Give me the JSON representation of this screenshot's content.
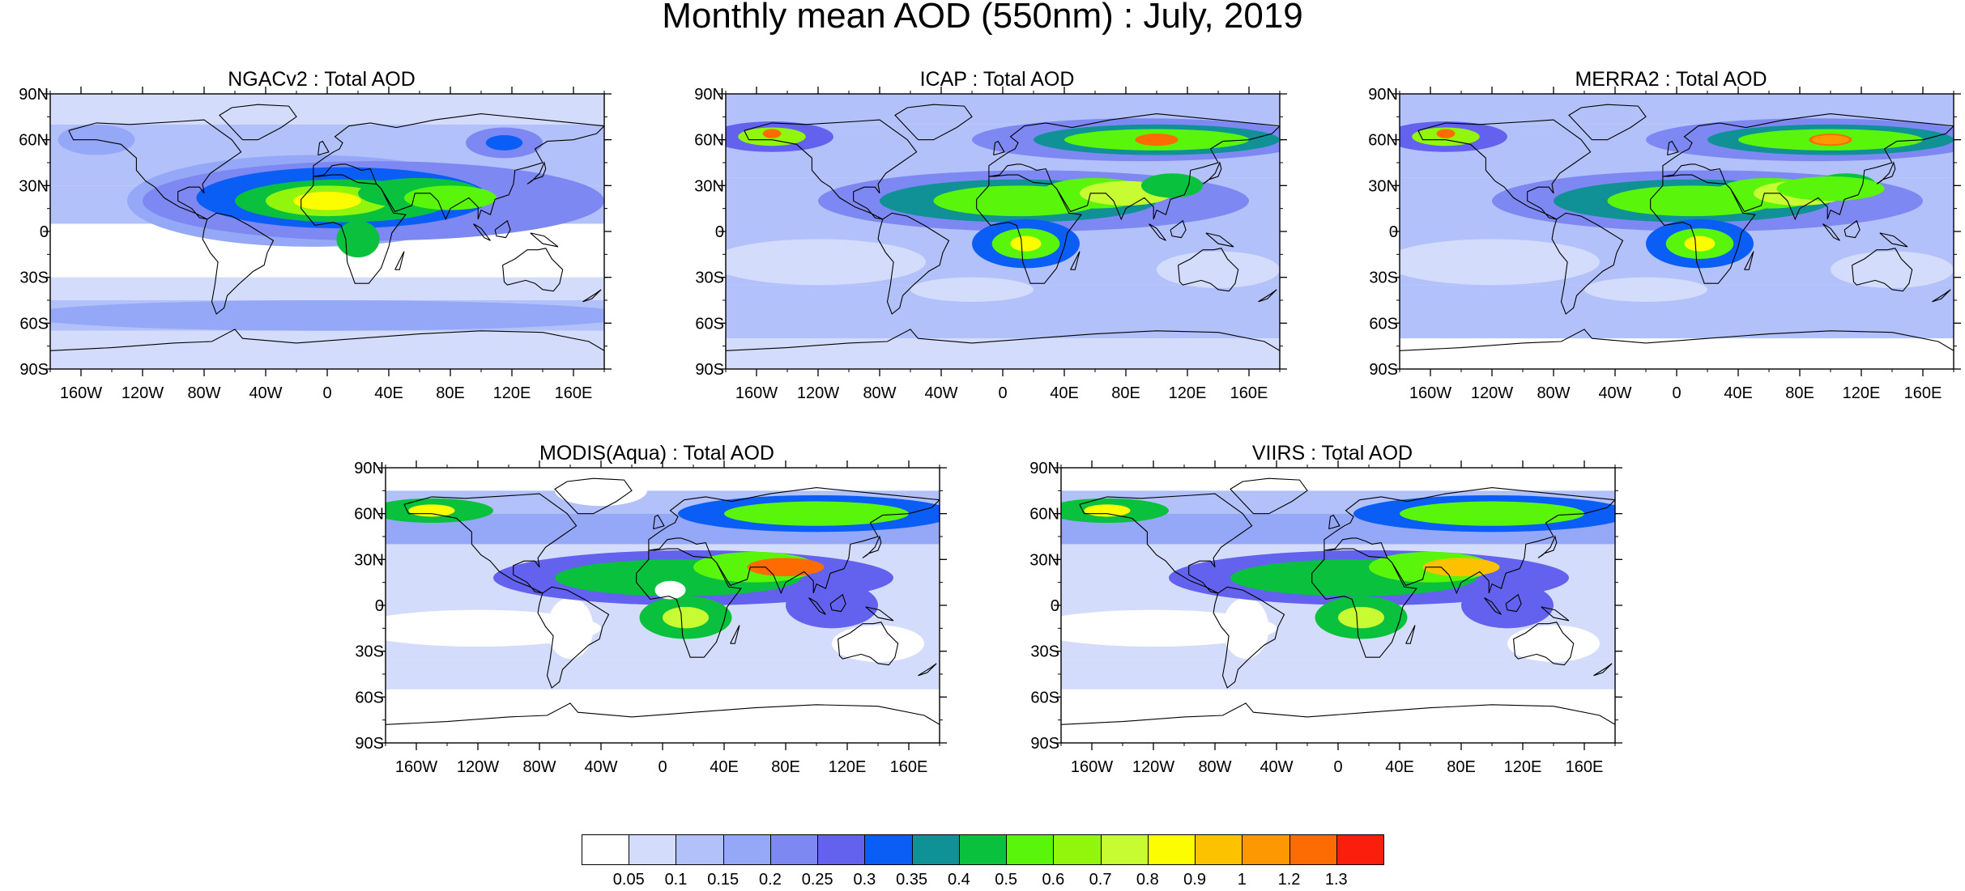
{
  "title": "Monthly mean AOD (550nm) : July, 2019",
  "lat_ticks": [
    "90N",
    "60N",
    "30N",
    "0",
    "30S",
    "60S",
    "90S"
  ],
  "lon_ticks": [
    "160W",
    "120W",
    "80W",
    "40W",
    "0",
    "40E",
    "80E",
    "120E",
    "160E"
  ],
  "panels": [
    {
      "title": "NGACv2 : Total AOD",
      "model": "ngac"
    },
    {
      "title": "ICAP : Total AOD",
      "model": "icap"
    },
    {
      "title": "MERRA2 : Total AOD",
      "model": "merra"
    },
    {
      "title": "MODIS(Aqua) : Total AOD",
      "model": "modis"
    },
    {
      "title": "VIIRS : Total AOD",
      "model": "viirs"
    }
  ],
  "colorbar": {
    "labels": [
      "0.05",
      "0.1",
      "0.15",
      "0.2",
      "0.25",
      "0.3",
      "0.35",
      "0.4",
      "0.5",
      "0.6",
      "0.7",
      "0.8",
      "0.9",
      "1",
      "1.2",
      "1.3"
    ],
    "colors": [
      "#ffffff",
      "#d4dcfb",
      "#b3c1fa",
      "#95a8f7",
      "#7d88f2",
      "#6262ef",
      "#0a5ef6",
      "#0f9196",
      "#09c13c",
      "#59f60c",
      "#91f50c",
      "#c7fb32",
      "#fdfd02",
      "#fcc200",
      "#fd9803",
      "#fd6b02",
      "#fc1e0c"
    ]
  }
}
